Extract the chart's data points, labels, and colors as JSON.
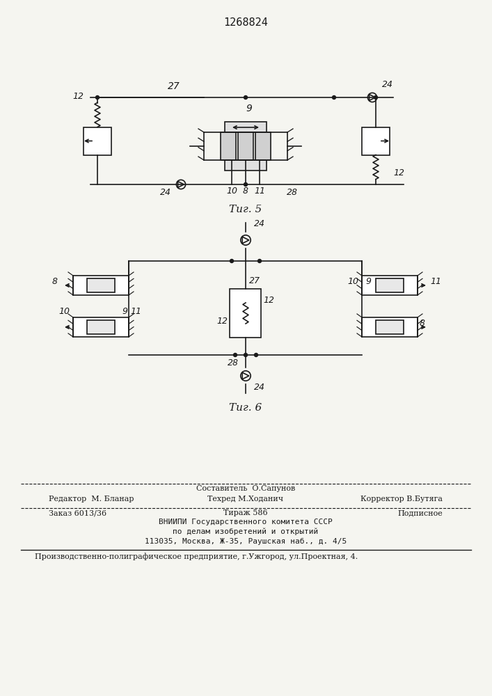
{
  "patent_number": "1268824",
  "fig5_caption": "Τиг. 5",
  "fig6_caption": "Τиг. 6",
  "bg_color": "#f5f5f0",
  "line_color": "#1a1a1a",
  "footer": {
    "line1_center": "Составитель  О.Сапунов",
    "line2_left": "Редактор  М. Бланар",
    "line2_center": "Техред М.Ходанич",
    "line2_right": "Корректор В.Бутяга",
    "line3_left": "Заказ 6013/36",
    "line3_center": "Тираж 586",
    "line3_right": "Подписное",
    "line4": "ВНИИПИ Государственного комитета СССР",
    "line5": "по делам изобретений и открытий",
    "line6": "113035, Москва, Ж-35, Раушская наб., д. 4/5",
    "line7": "Производственно-полиграфическое предприятие, г.Ужгород, ул.Проектная, 4."
  }
}
